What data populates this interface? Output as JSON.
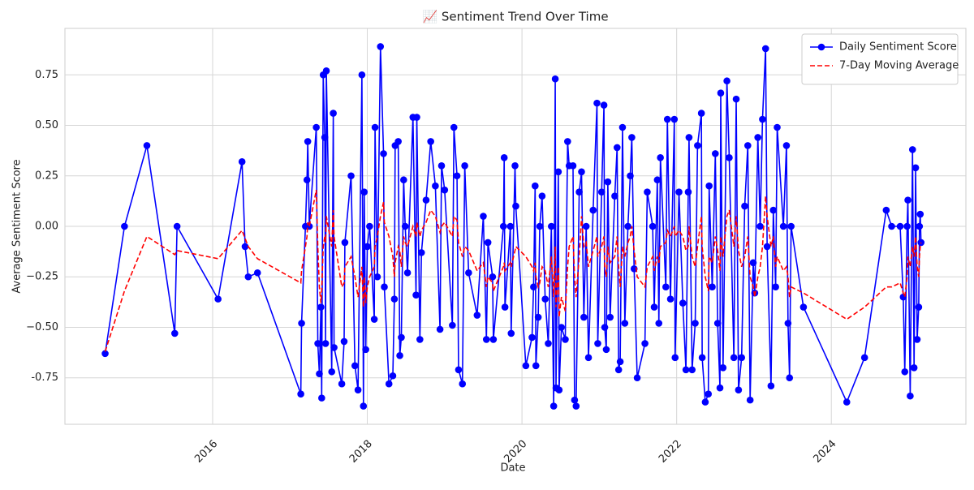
{
  "chart_data": {
    "type": "line",
    "title": "📈 Sentiment Trend Over Time",
    "x_label": "Date",
    "y_label": "Average Sentiment Score",
    "x": [
      2014.61,
      2014.86,
      2015.15,
      2015.51,
      2015.54,
      2016.07,
      2016.38,
      2016.42,
      2016.46,
      2016.58,
      2017.14,
      2017.15,
      2017.2,
      2017.22,
      2017.23,
      2017.25,
      2017.34,
      2017.36,
      2017.38,
      2017.4,
      2017.41,
      2017.43,
      2017.45,
      2017.46,
      2017.47,
      2017.54,
      2017.56,
      2017.57,
      2017.67,
      2017.7,
      2017.71,
      2017.79,
      2017.84,
      2017.88,
      2017.93,
      2017.95,
      2017.96,
      2017.98,
      2018.0,
      2018.03,
      2018.09,
      2018.1,
      2018.13,
      2018.17,
      2018.21,
      2018.22,
      2018.28,
      2018.33,
      2018.35,
      2018.36,
      2018.4,
      2018.42,
      2018.44,
      2018.47,
      2018.49,
      2018.52,
      2018.59,
      2018.63,
      2018.64,
      2018.68,
      2018.7,
      2018.76,
      2018.82,
      2018.88,
      2018.94,
      2018.96,
      2019.0,
      2019.1,
      2019.12,
      2019.16,
      2019.18,
      2019.23,
      2019.26,
      2019.31,
      2019.42,
      2019.5,
      2019.54,
      2019.56,
      2019.62,
      2019.63,
      2019.76,
      2019.77,
      2019.78,
      2019.85,
      2019.86,
      2019.91,
      2019.92,
      2020.05,
      2020.13,
      2020.15,
      2020.17,
      2020.18,
      2020.21,
      2020.23,
      2020.26,
      2020.3,
      2020.34,
      2020.38,
      2020.41,
      2020.43,
      2020.44,
      2020.47,
      2020.48,
      2020.51,
      2020.56,
      2020.59,
      2020.61,
      2020.66,
      2020.68,
      2020.7,
      2020.74,
      2020.77,
      2020.8,
      2020.83,
      2020.86,
      2020.92,
      2020.97,
      2020.98,
      2021.03,
      2021.06,
      2021.07,
      2021.09,
      2021.11,
      2021.14,
      2021.2,
      2021.23,
      2021.25,
      2021.27,
      2021.3,
      2021.33,
      2021.37,
      2021.4,
      2021.42,
      2021.45,
      2021.49,
      2021.59,
      2021.62,
      2021.69,
      2021.71,
      2021.75,
      2021.77,
      2021.79,
      2021.86,
      2021.88,
      2021.92,
      2021.97,
      2021.98,
      2022.03,
      2022.08,
      2022.12,
      2022.15,
      2022.16,
      2022.2,
      2022.24,
      2022.27,
      2022.32,
      2022.33,
      2022.37,
      2022.41,
      2022.42,
      2022.46,
      2022.5,
      2022.53,
      2022.56,
      2022.57,
      2022.6,
      2022.65,
      2022.68,
      2022.74,
      2022.77,
      2022.8,
      2022.84,
      2022.88,
      2022.92,
      2022.95,
      2022.99,
      2023.01,
      2023.05,
      2023.08,
      2023.11,
      2023.15,
      2023.17,
      2023.22,
      2023.25,
      2023.28,
      2023.3,
      2023.38,
      2023.42,
      2023.44,
      2023.46,
      2023.48,
      2023.64,
      2024.2,
      2024.43,
      2024.71,
      2024.78,
      2024.89,
      2024.93,
      2024.95,
      2024.98,
      2024.99,
      2025.02,
      2025.05,
      2025.07,
      2025.09,
      2025.11,
      2025.13,
      2025.14,
      2025.15,
      2025.16
    ],
    "series": [
      {
        "name": "Daily Sentiment Score",
        "color": "#0000ff",
        "linestyle": "solid",
        "marker": "circle",
        "values": [
          -0.63,
          0,
          0.4,
          -0.53,
          0,
          -0.36,
          0.32,
          -0.1,
          -0.25,
          -0.23,
          -0.83,
          -0.48,
          0,
          0.23,
          0.42,
          0,
          0.49,
          -0.58,
          -0.73,
          -0.4,
          -0.85,
          0.75,
          0.44,
          -0.58,
          0.77,
          -0.72,
          0.56,
          -0.6,
          -0.78,
          -0.57,
          -0.08,
          0.25,
          -0.69,
          -0.81,
          0.75,
          -0.89,
          0.17,
          -0.61,
          -0.1,
          0,
          -0.46,
          0.49,
          -0.25,
          0.89,
          0.36,
          -0.3,
          -0.78,
          -0.74,
          -0.36,
          0.4,
          0.42,
          -0.64,
          -0.55,
          0.23,
          0,
          -0.23,
          0.54,
          -0.34,
          0.54,
          -0.56,
          -0.13,
          0.13,
          0.42,
          0.2,
          -0.51,
          0.3,
          0.18,
          -0.49,
          0.49,
          0.25,
          -0.71,
          -0.78,
          0.3,
          -0.23,
          -0.44,
          0.05,
          -0.56,
          -0.08,
          -0.25,
          -0.56,
          0,
          0.34,
          -0.4,
          0,
          -0.53,
          0.3,
          0.1,
          -0.69,
          -0.55,
          -0.3,
          0.2,
          -0.69,
          -0.45,
          0,
          0.15,
          -0.36,
          -0.58,
          0,
          -0.89,
          0.73,
          -0.8,
          0.27,
          -0.81,
          -0.5,
          -0.56,
          0.42,
          0.3,
          0.3,
          -0.86,
          -0.89,
          0.17,
          0.27,
          -0.45,
          0,
          -0.65,
          0.08,
          0.61,
          -0.58,
          0.17,
          0.6,
          -0.5,
          -0.61,
          0.22,
          -0.45,
          0.15,
          0.39,
          -0.71,
          -0.67,
          0.49,
          -0.48,
          0,
          0.25,
          0.44,
          -0.21,
          -0.75,
          -0.58,
          0.17,
          0,
          -0.4,
          0.23,
          -0.48,
          0.34,
          -0.3,
          0.53,
          -0.36,
          0.53,
          -0.65,
          0.17,
          -0.38,
          -0.71,
          0.17,
          0.44,
          -0.71,
          -0.48,
          0.4,
          0.56,
          -0.65,
          -0.87,
          -0.83,
          0.2,
          -0.3,
          0.36,
          -0.48,
          -0.8,
          0.66,
          -0.7,
          0.72,
          0.34,
          -0.65,
          0.63,
          -0.81,
          -0.65,
          0.1,
          0.4,
          -0.86,
          -0.18,
          -0.33,
          0.44,
          0,
          0.53,
          0.88,
          -0.1,
          -0.79,
          0.08,
          -0.3,
          0.49,
          0,
          0.4,
          -0.48,
          -0.75,
          0,
          -0.4,
          -0.87,
          -0.65,
          0.08,
          0,
          0,
          -0.35,
          -0.72,
          0,
          0.13,
          -0.84,
          0.38,
          -0.7,
          0.29,
          -0.56,
          -0.4,
          0,
          0.06,
          -0.08
        ]
      },
      {
        "name": "7-Day Moving Average",
        "color": "#ff0000",
        "linestyle": "dashed",
        "values": [
          -0.62,
          -0.32,
          -0.05,
          -0.14,
          -0.12,
          -0.16,
          -0.02,
          -0.06,
          -0.1,
          -0.16,
          -0.28,
          -0.22,
          -0.1,
          -0.05,
          0.02,
          0.0,
          0.18,
          -0.1,
          -0.3,
          -0.38,
          -0.32,
          -0.1,
          -0.05,
          -0.08,
          0.05,
          -0.1,
          0.08,
          -0.05,
          -0.3,
          -0.28,
          -0.2,
          -0.15,
          -0.25,
          -0.35,
          -0.2,
          -0.4,
          -0.25,
          -0.38,
          -0.3,
          -0.25,
          -0.2,
          -0.1,
          -0.05,
          0.05,
          0.12,
          0.02,
          -0.05,
          -0.15,
          -0.25,
          -0.18,
          -0.1,
          -0.12,
          -0.2,
          -0.05,
          -0.08,
          -0.1,
          0.0,
          -0.05,
          0.02,
          -0.05,
          -0.02,
          0.02,
          0.08,
          0.05,
          -0.03,
          0.0,
          0.02,
          -0.05,
          0.05,
          0.03,
          -0.08,
          -0.15,
          -0.1,
          -0.12,
          -0.22,
          -0.18,
          -0.3,
          -0.25,
          -0.28,
          -0.32,
          -0.2,
          -0.18,
          -0.22,
          -0.18,
          -0.2,
          -0.12,
          -0.1,
          -0.15,
          -0.2,
          -0.22,
          -0.18,
          -0.25,
          -0.3,
          -0.28,
          -0.2,
          -0.22,
          -0.3,
          -0.15,
          -0.35,
          -0.1,
          -0.4,
          -0.2,
          -0.45,
          -0.35,
          -0.42,
          -0.2,
          -0.1,
          -0.05,
          -0.25,
          -0.35,
          -0.15,
          0.05,
          -0.1,
          -0.08,
          -0.2,
          -0.12,
          -0.05,
          -0.15,
          -0.1,
          -0.05,
          -0.2,
          -0.25,
          -0.1,
          -0.18,
          -0.15,
          -0.05,
          -0.2,
          -0.3,
          -0.1,
          -0.15,
          -0.08,
          -0.05,
          0.0,
          -0.12,
          -0.25,
          -0.3,
          -0.2,
          -0.15,
          -0.22,
          -0.15,
          -0.18,
          -0.1,
          -0.08,
          -0.02,
          -0.05,
          0.0,
          -0.05,
          -0.02,
          -0.05,
          -0.12,
          -0.1,
          0.0,
          -0.15,
          -0.2,
          -0.1,
          0.05,
          -0.1,
          -0.25,
          -0.32,
          -0.15,
          -0.18,
          -0.05,
          -0.12,
          -0.22,
          -0.05,
          -0.15,
          0.05,
          0.08,
          -0.1,
          0.05,
          -0.12,
          -0.2,
          -0.15,
          -0.05,
          -0.25,
          -0.3,
          -0.35,
          -0.25,
          -0.2,
          -0.1,
          0.15,
          0.05,
          -0.1,
          -0.05,
          -0.2,
          -0.15,
          -0.22,
          -0.2,
          -0.25,
          -0.35,
          -0.3,
          -0.33,
          -0.46,
          -0.4,
          -0.3,
          -0.3,
          -0.28,
          -0.33,
          -0.35,
          -0.25,
          -0.15,
          -0.2,
          -0.1,
          -0.15,
          -0.05,
          -0.2,
          -0.25,
          -0.15,
          -0.1,
          -0.08
        ]
      }
    ],
    "xlim": [
      2014.09,
      2025.74
    ],
    "xticks": [
      2016,
      2018,
      2020,
      2022,
      2024
    ],
    "ylim": [
      -0.98,
      0.98
    ],
    "yticks": [
      -0.75,
      {
        "value": -0.5,
        "label": "−0.50"
      },
      {
        "value": -0.25,
        "label": "−0.25"
      },
      {
        "value": 0,
        "label": "0.00"
      },
      0.25,
      {
        "value": 0.5,
        "label": "0.50"
      },
      0.75
    ],
    "grid": true,
    "legend": "upper right"
  }
}
